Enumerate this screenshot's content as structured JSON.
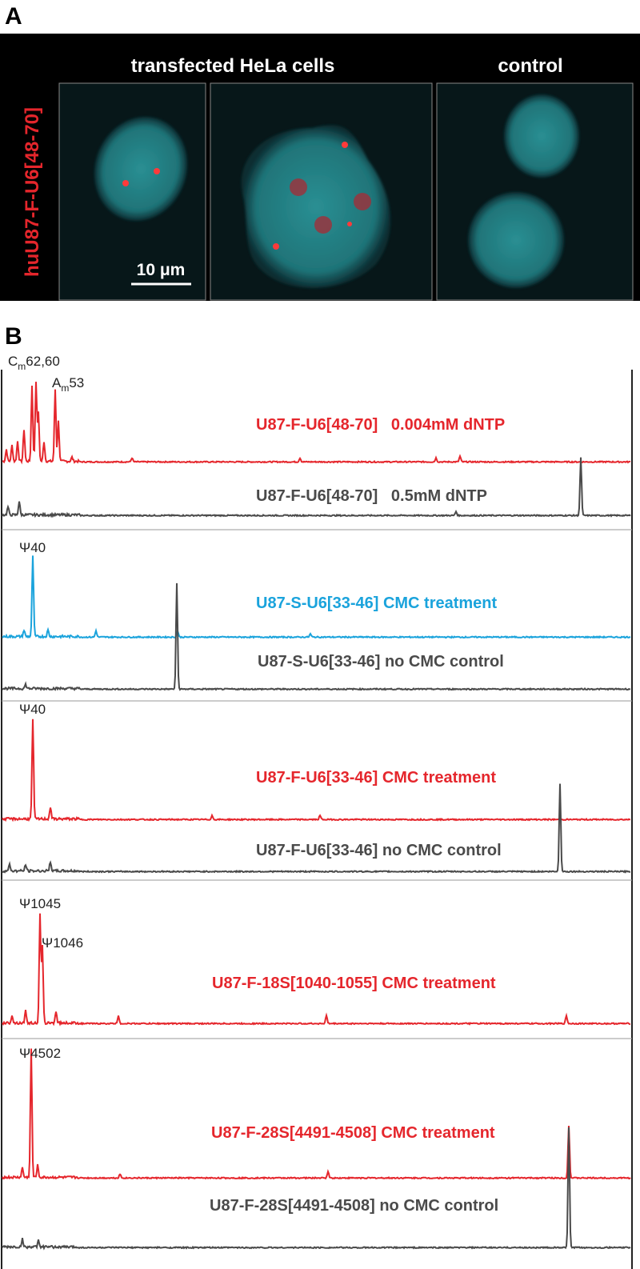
{
  "panel_a": {
    "label": "A",
    "headers": [
      "transfected HeLa cells",
      "control"
    ],
    "row_label": "huU87-F-U6[48-70]",
    "scale_bar": "10 μm"
  },
  "panel_b": {
    "label": "B",
    "peak_labels": [
      {
        "base": "C",
        "sub": "m",
        "rest": "62,60"
      },
      {
        "base": "A",
        "sub": "m",
        "rest": "53"
      },
      {
        "base": "Ψ40"
      },
      {
        "base": "Ψ40"
      },
      {
        "base": "Ψ1045"
      },
      {
        "base": "Ψ1046"
      },
      {
        "base": "Ψ4502"
      }
    ],
    "traces": [
      {
        "label": "U87-F-U6[48-70]   0.004mM dNTP",
        "color": "#e5262c"
      },
      {
        "label": "U87-F-U6[48-70]   0.5mM dNTP",
        "color": "#4a4a4a"
      },
      {
        "label": "U87-S-U6[33-46] CMC treatment",
        "color": "#1aa3dc"
      },
      {
        "label": "U87-S-U6[33-46] no CMC control",
        "color": "#4a4a4a"
      },
      {
        "label": "U87-F-U6[33-46] CMC treatment",
        "color": "#e5262c"
      },
      {
        "label": "U87-F-U6[33-46] no CMC control",
        "color": "#4a4a4a"
      },
      {
        "label": "U87-F-18S[1040-1055] CMC treatment",
        "color": "#e5262c"
      },
      {
        "label": "U87-F-28S[4491-4508] CMC treatment",
        "color": "#e5262c"
      },
      {
        "label": "U87-F-28S[4491-4508] no CMC control",
        "color": "#4a4a4a"
      }
    ]
  }
}
